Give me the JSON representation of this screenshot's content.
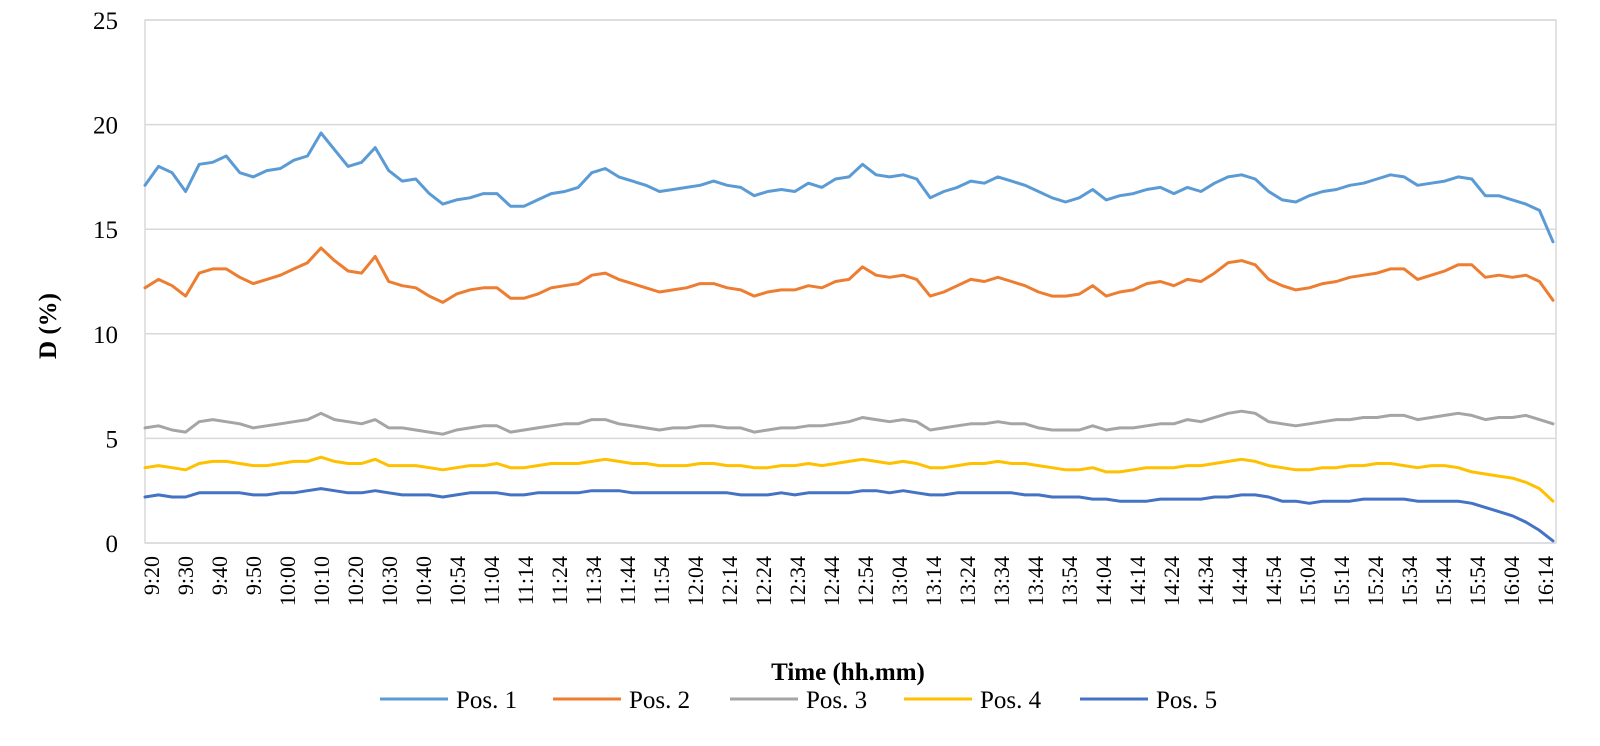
{
  "chart_data": {
    "type": "line",
    "xlabel": "Time (hh.mm)",
    "ylabel": "D (%)",
    "ylim": [
      0,
      25
    ],
    "yticks": [
      "0",
      "5",
      "10",
      "15",
      "20",
      "25"
    ],
    "xticks": [
      "9:20",
      "9:30",
      "9:40",
      "9:50",
      "10:00",
      "10:10",
      "10:20",
      "10:30",
      "10:40",
      "10:54",
      "11:04",
      "11:14",
      "11:24",
      "11:34",
      "11:44",
      "11:54",
      "12:04",
      "12:14",
      "12:24",
      "12:34",
      "12:44",
      "12:54",
      "13:04",
      "13:14",
      "13:24",
      "13:34",
      "13:44",
      "13:54",
      "14:04",
      "14:14",
      "14:24",
      "14:34",
      "14:44",
      "14:54",
      "15:04",
      "15:14",
      "15:24",
      "15:34",
      "15:44",
      "15:54",
      "16:04",
      "16:14"
    ],
    "grid": "horizontal",
    "legend_position": "bottom",
    "series": [
      {
        "name": "Pos. 1",
        "color": "#5B9BD5",
        "values": [
          17.1,
          18.0,
          17.7,
          16.8,
          18.1,
          18.2,
          18.5,
          17.7,
          17.5,
          17.8,
          17.9,
          18.3,
          18.5,
          19.6,
          18.8,
          18.0,
          18.2,
          18.9,
          17.8,
          17.3,
          17.4,
          16.7,
          16.2,
          16.4,
          16.5,
          16.7,
          16.7,
          16.1,
          16.1,
          16.4,
          16.7,
          16.8,
          17.0,
          17.7,
          17.9,
          17.5,
          17.3,
          17.1,
          16.8,
          16.9,
          17.0,
          17.1,
          17.3,
          17.1,
          17.0,
          16.6,
          16.8,
          16.9,
          16.8,
          17.2,
          17.0,
          17.4,
          17.5,
          18.1,
          17.6,
          17.5,
          17.6,
          17.4,
          16.5,
          16.8,
          17.0,
          17.3,
          17.2,
          17.5,
          17.3,
          17.1,
          16.8,
          16.5,
          16.3,
          16.5,
          16.9,
          16.4,
          16.6,
          16.7,
          16.9,
          17.0,
          16.7,
          17.0,
          16.8,
          17.2,
          17.5,
          17.6,
          17.4,
          16.8,
          16.4,
          16.3,
          16.6,
          16.8,
          16.9,
          17.1,
          17.2,
          17.4,
          17.6,
          17.5,
          17.1,
          17.2,
          17.3,
          17.5,
          17.4,
          16.6,
          16.6,
          16.4,
          16.2,
          15.9,
          14.4
        ]
      },
      {
        "name": "Pos. 2",
        "color": "#ED7D31",
        "values": [
          12.2,
          12.6,
          12.3,
          11.8,
          12.9,
          13.1,
          13.1,
          12.7,
          12.4,
          12.6,
          12.8,
          13.1,
          13.4,
          14.1,
          13.5,
          13.0,
          12.9,
          13.7,
          12.5,
          12.3,
          12.2,
          11.8,
          11.5,
          11.9,
          12.1,
          12.2,
          12.2,
          11.7,
          11.7,
          11.9,
          12.2,
          12.3,
          12.4,
          12.8,
          12.9,
          12.6,
          12.4,
          12.2,
          12.0,
          12.1,
          12.2,
          12.4,
          12.4,
          12.2,
          12.1,
          11.8,
          12.0,
          12.1,
          12.1,
          12.3,
          12.2,
          12.5,
          12.6,
          13.2,
          12.8,
          12.7,
          12.8,
          12.6,
          11.8,
          12.0,
          12.3,
          12.6,
          12.5,
          12.7,
          12.5,
          12.3,
          12.0,
          11.8,
          11.8,
          11.9,
          12.3,
          11.8,
          12.0,
          12.1,
          12.4,
          12.5,
          12.3,
          12.6,
          12.5,
          12.9,
          13.4,
          13.5,
          13.3,
          12.6,
          12.3,
          12.1,
          12.2,
          12.4,
          12.5,
          12.7,
          12.8,
          12.9,
          13.1,
          13.1,
          12.6,
          12.8,
          13.0,
          13.3,
          13.3,
          12.7,
          12.8,
          12.7,
          12.8,
          12.5,
          11.6
        ]
      },
      {
        "name": "Pos. 3",
        "color": "#A5A5A5",
        "values": [
          5.5,
          5.6,
          5.4,
          5.3,
          5.8,
          5.9,
          5.8,
          5.7,
          5.5,
          5.6,
          5.7,
          5.8,
          5.9,
          6.2,
          5.9,
          5.8,
          5.7,
          5.9,
          5.5,
          5.5,
          5.4,
          5.3,
          5.2,
          5.4,
          5.5,
          5.6,
          5.6,
          5.3,
          5.4,
          5.5,
          5.6,
          5.7,
          5.7,
          5.9,
          5.9,
          5.7,
          5.6,
          5.5,
          5.4,
          5.5,
          5.5,
          5.6,
          5.6,
          5.5,
          5.5,
          5.3,
          5.4,
          5.5,
          5.5,
          5.6,
          5.6,
          5.7,
          5.8,
          6.0,
          5.9,
          5.8,
          5.9,
          5.8,
          5.4,
          5.5,
          5.6,
          5.7,
          5.7,
          5.8,
          5.7,
          5.7,
          5.5,
          5.4,
          5.4,
          5.4,
          5.6,
          5.4,
          5.5,
          5.5,
          5.6,
          5.7,
          5.7,
          5.9,
          5.8,
          6.0,
          6.2,
          6.3,
          6.2,
          5.8,
          5.7,
          5.6,
          5.7,
          5.8,
          5.9,
          5.9,
          6.0,
          6.0,
          6.1,
          6.1,
          5.9,
          6.0,
          6.1,
          6.2,
          6.1,
          5.9,
          6.0,
          6.0,
          6.1,
          5.9,
          5.7
        ]
      },
      {
        "name": "Pos. 4",
        "color": "#FFC000",
        "values": [
          3.6,
          3.7,
          3.6,
          3.5,
          3.8,
          3.9,
          3.9,
          3.8,
          3.7,
          3.7,
          3.8,
          3.9,
          3.9,
          4.1,
          3.9,
          3.8,
          3.8,
          4.0,
          3.7,
          3.7,
          3.7,
          3.6,
          3.5,
          3.6,
          3.7,
          3.7,
          3.8,
          3.6,
          3.6,
          3.7,
          3.8,
          3.8,
          3.8,
          3.9,
          4.0,
          3.9,
          3.8,
          3.8,
          3.7,
          3.7,
          3.7,
          3.8,
          3.8,
          3.7,
          3.7,
          3.6,
          3.6,
          3.7,
          3.7,
          3.8,
          3.7,
          3.8,
          3.9,
          4.0,
          3.9,
          3.8,
          3.9,
          3.8,
          3.6,
          3.6,
          3.7,
          3.8,
          3.8,
          3.9,
          3.8,
          3.8,
          3.7,
          3.6,
          3.5,
          3.5,
          3.6,
          3.4,
          3.4,
          3.5,
          3.6,
          3.6,
          3.6,
          3.7,
          3.7,
          3.8,
          3.9,
          4.0,
          3.9,
          3.7,
          3.6,
          3.5,
          3.5,
          3.6,
          3.6,
          3.7,
          3.7,
          3.8,
          3.8,
          3.7,
          3.6,
          3.7,
          3.7,
          3.6,
          3.4,
          3.3,
          3.2,
          3.1,
          2.9,
          2.6,
          2.0
        ]
      },
      {
        "name": "Pos. 5",
        "color": "#4472C4",
        "values": [
          2.2,
          2.3,
          2.2,
          2.2,
          2.4,
          2.4,
          2.4,
          2.4,
          2.3,
          2.3,
          2.4,
          2.4,
          2.5,
          2.6,
          2.5,
          2.4,
          2.4,
          2.5,
          2.4,
          2.3,
          2.3,
          2.3,
          2.2,
          2.3,
          2.4,
          2.4,
          2.4,
          2.3,
          2.3,
          2.4,
          2.4,
          2.4,
          2.4,
          2.5,
          2.5,
          2.5,
          2.4,
          2.4,
          2.4,
          2.4,
          2.4,
          2.4,
          2.4,
          2.4,
          2.3,
          2.3,
          2.3,
          2.4,
          2.3,
          2.4,
          2.4,
          2.4,
          2.4,
          2.5,
          2.5,
          2.4,
          2.5,
          2.4,
          2.3,
          2.3,
          2.4,
          2.4,
          2.4,
          2.4,
          2.4,
          2.3,
          2.3,
          2.2,
          2.2,
          2.2,
          2.1,
          2.1,
          2.0,
          2.0,
          2.0,
          2.1,
          2.1,
          2.1,
          2.1,
          2.2,
          2.2,
          2.3,
          2.3,
          2.2,
          2.0,
          2.0,
          1.9,
          2.0,
          2.0,
          2.0,
          2.1,
          2.1,
          2.1,
          2.1,
          2.0,
          2.0,
          2.0,
          2.0,
          1.9,
          1.7,
          1.5,
          1.3,
          1.0,
          0.6,
          0.1
        ]
      }
    ]
  }
}
